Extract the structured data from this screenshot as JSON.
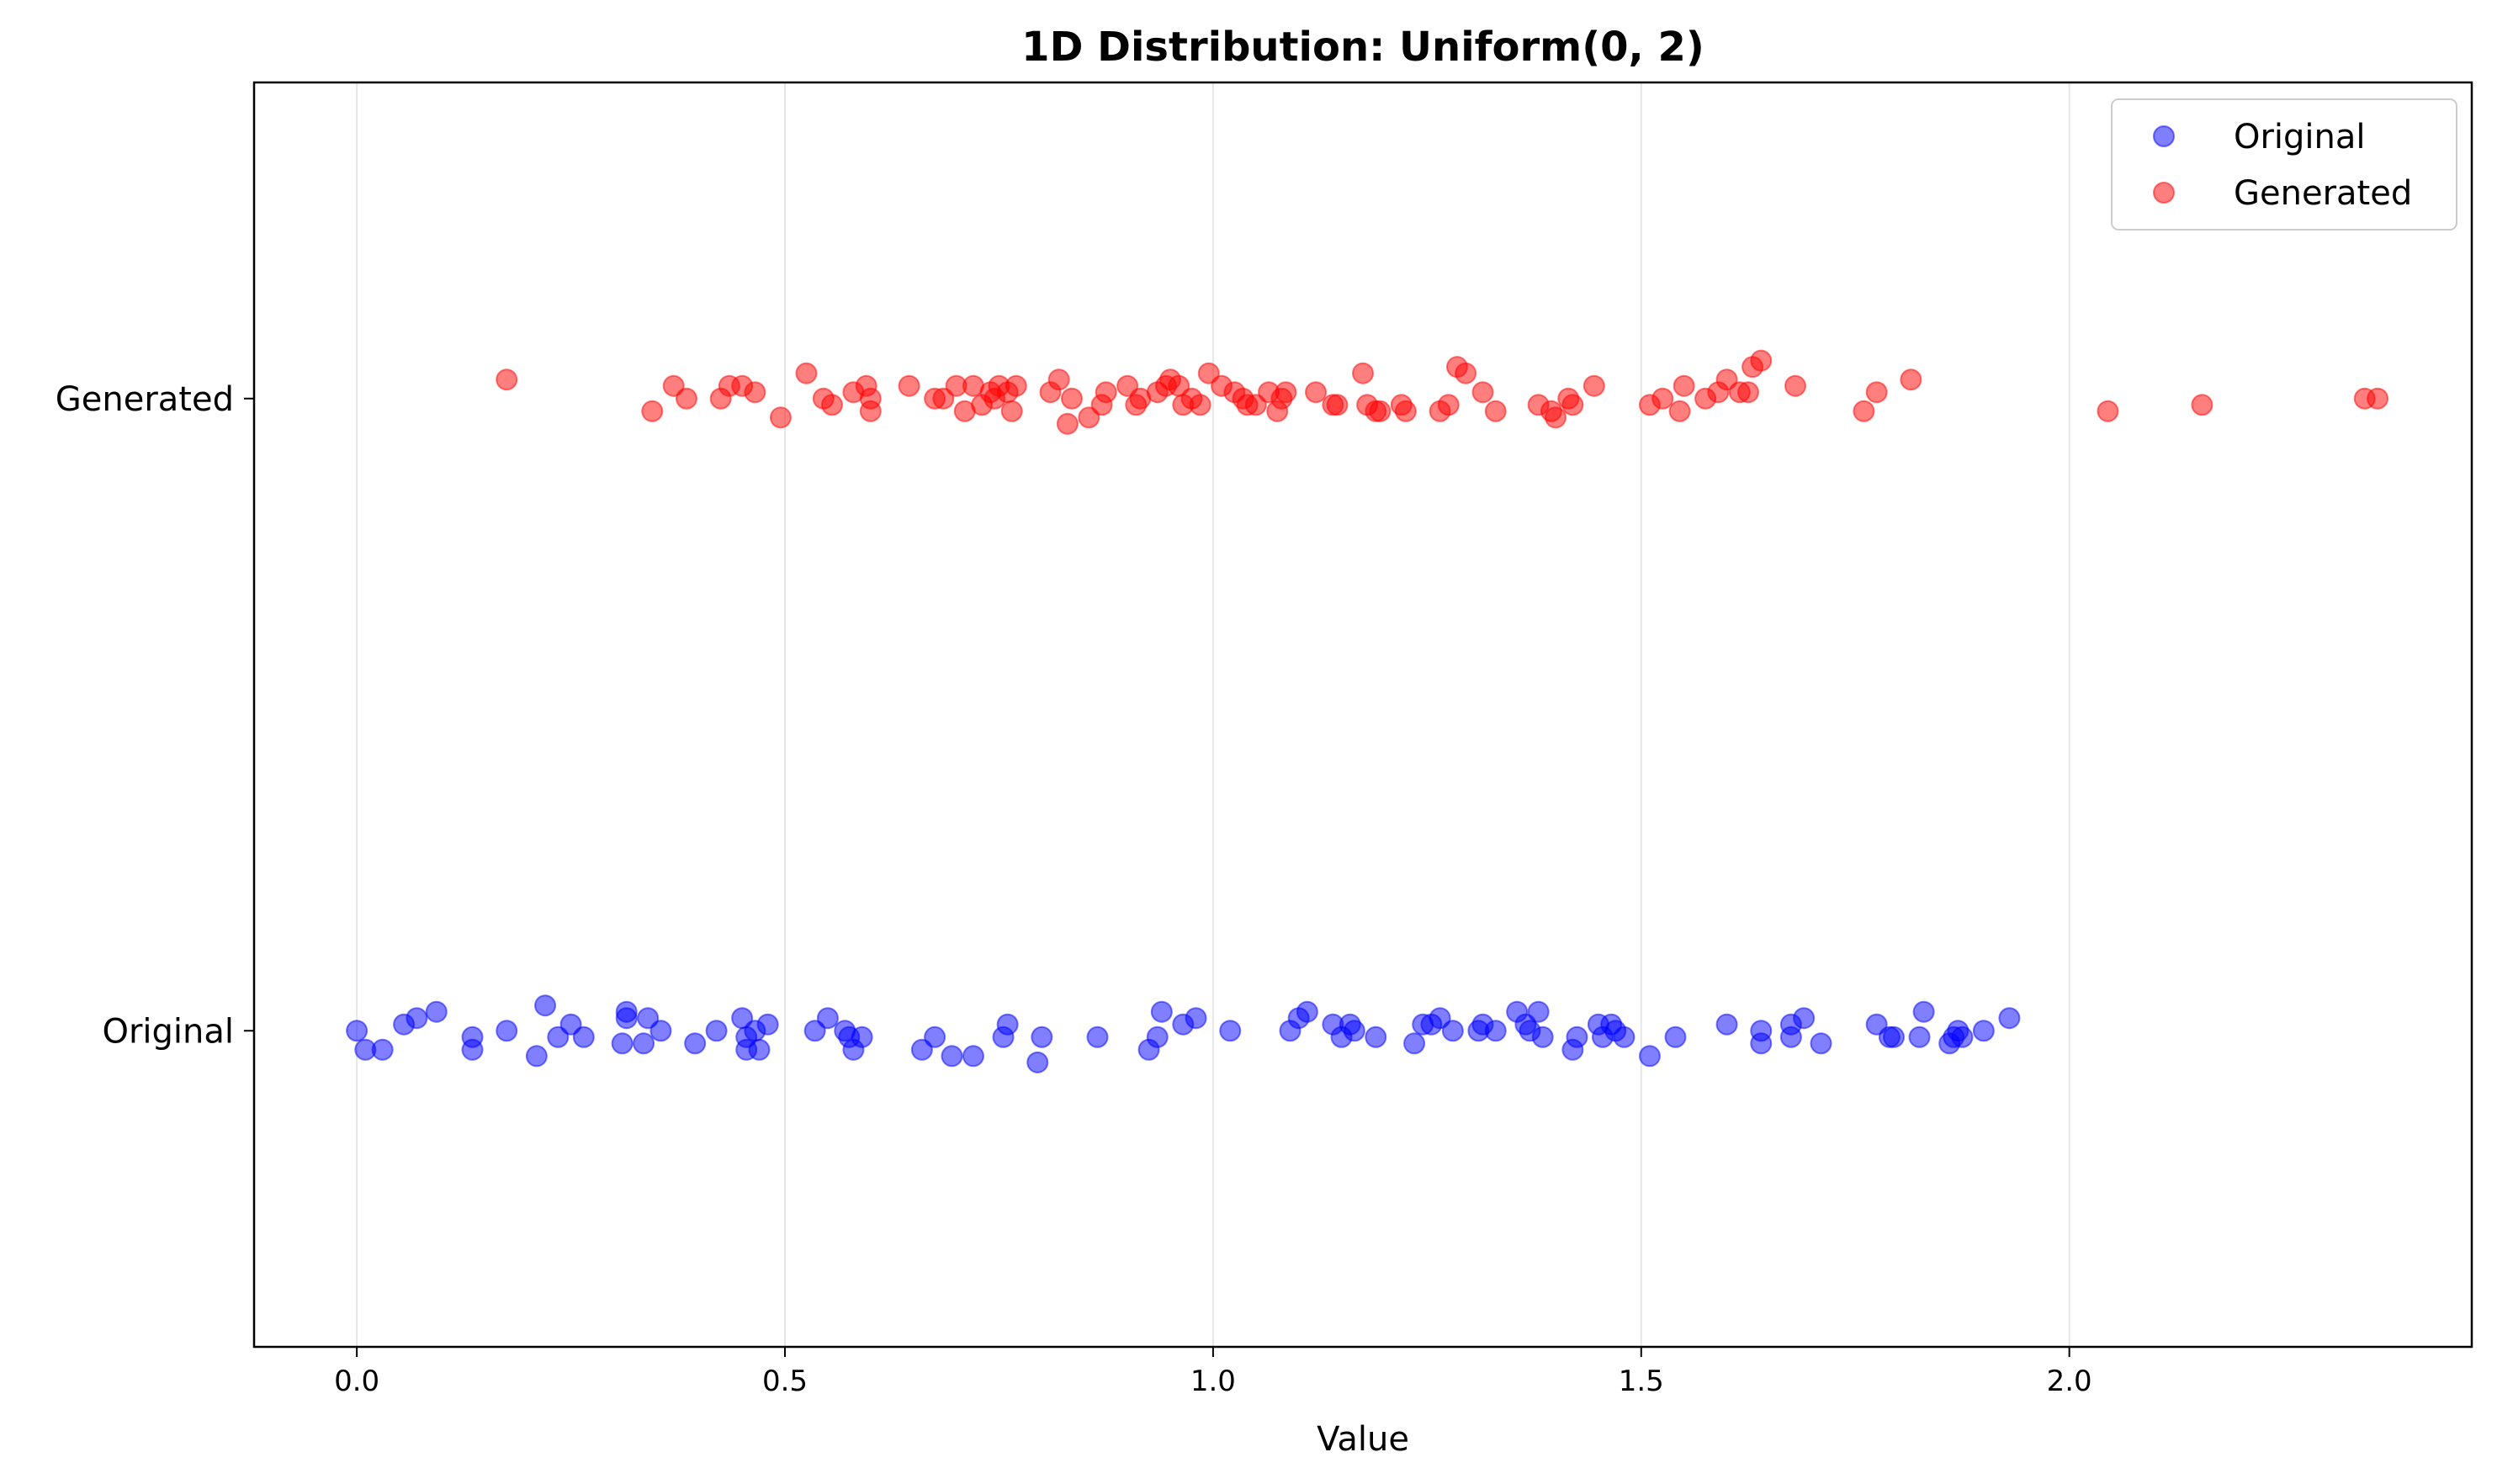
{
  "chart_data": {
    "type": "scatter",
    "title": "1D Distribution: Uniform(0, 2)",
    "xlabel": "Value",
    "ylabel": "",
    "xlim": [
      -0.12,
      2.47
    ],
    "ylim": [
      -0.5,
      1.5
    ],
    "x_ticks": [
      "0.0",
      "0.5",
      "1.0",
      "1.5",
      "2.0"
    ],
    "x_tick_values": [
      0.0,
      0.5,
      1.0,
      1.5,
      2.0
    ],
    "y_ticks": [
      "Original",
      "Generated"
    ],
    "y_tick_values": [
      0,
      1
    ],
    "grid": "vertical",
    "legend_position": "top-right",
    "series": [
      {
        "name": "Original",
        "color": "#0000ff",
        "alpha": 0.5,
        "category": "Original",
        "points": [
          {
            "x": 0.0,
            "y": 0.0
          },
          {
            "x": 0.01,
            "y": -0.03
          },
          {
            "x": 0.03,
            "y": -0.03
          },
          {
            "x": 0.055,
            "y": 0.01
          },
          {
            "x": 0.07,
            "y": 0.02
          },
          {
            "x": 0.093,
            "y": 0.03
          },
          {
            "x": 0.135,
            "y": -0.01
          },
          {
            "x": 0.135,
            "y": -0.03
          },
          {
            "x": 0.175,
            "y": 0.0
          },
          {
            "x": 0.21,
            "y": -0.04
          },
          {
            "x": 0.22,
            "y": 0.04
          },
          {
            "x": 0.235,
            "y": -0.01
          },
          {
            "x": 0.25,
            "y": 0.01
          },
          {
            "x": 0.265,
            "y": -0.01
          },
          {
            "x": 0.31,
            "y": -0.02
          },
          {
            "x": 0.315,
            "y": 0.02
          },
          {
            "x": 0.315,
            "y": 0.03
          },
          {
            "x": 0.335,
            "y": -0.02
          },
          {
            "x": 0.34,
            "y": 0.02
          },
          {
            "x": 0.355,
            "y": 0.0
          },
          {
            "x": 0.395,
            "y": -0.02
          },
          {
            "x": 0.42,
            "y": 0.0
          },
          {
            "x": 0.45,
            "y": 0.02
          },
          {
            "x": 0.455,
            "y": -0.01
          },
          {
            "x": 0.455,
            "y": -0.03
          },
          {
            "x": 0.465,
            "y": 0.0
          },
          {
            "x": 0.47,
            "y": -0.03
          },
          {
            "x": 0.48,
            "y": 0.01
          },
          {
            "x": 0.535,
            "y": 0.0
          },
          {
            "x": 0.55,
            "y": 0.02
          },
          {
            "x": 0.57,
            "y": 0.0
          },
          {
            "x": 0.575,
            "y": -0.01
          },
          {
            "x": 0.58,
            "y": -0.03
          },
          {
            "x": 0.59,
            "y": -0.01
          },
          {
            "x": 0.66,
            "y": -0.03
          },
          {
            "x": 0.675,
            "y": -0.01
          },
          {
            "x": 0.695,
            "y": -0.04
          },
          {
            "x": 0.72,
            "y": -0.04
          },
          {
            "x": 0.755,
            "y": -0.01
          },
          {
            "x": 0.76,
            "y": 0.01
          },
          {
            "x": 0.795,
            "y": -0.05
          },
          {
            "x": 0.8,
            "y": -0.01
          },
          {
            "x": 0.865,
            "y": -0.01
          },
          {
            "x": 0.925,
            "y": -0.03
          },
          {
            "x": 0.935,
            "y": -0.01
          },
          {
            "x": 0.94,
            "y": 0.03
          },
          {
            "x": 0.965,
            "y": 0.01
          },
          {
            "x": 0.98,
            "y": 0.02
          },
          {
            "x": 1.02,
            "y": 0.0
          },
          {
            "x": 1.09,
            "y": 0.0
          },
          {
            "x": 1.1,
            "y": 0.02
          },
          {
            "x": 1.11,
            "y": 0.03
          },
          {
            "x": 1.14,
            "y": 0.01
          },
          {
            "x": 1.15,
            "y": -0.01
          },
          {
            "x": 1.16,
            "y": 0.01
          },
          {
            "x": 1.165,
            "y": 0.0
          },
          {
            "x": 1.19,
            "y": -0.01
          },
          {
            "x": 1.235,
            "y": -0.02
          },
          {
            "x": 1.245,
            "y": 0.01
          },
          {
            "x": 1.255,
            "y": 0.01
          },
          {
            "x": 1.265,
            "y": 0.02
          },
          {
            "x": 1.28,
            "y": 0.0
          },
          {
            "x": 1.31,
            "y": 0.0
          },
          {
            "x": 1.315,
            "y": 0.01
          },
          {
            "x": 1.33,
            "y": 0.0
          },
          {
            "x": 1.355,
            "y": 0.03
          },
          {
            "x": 1.365,
            "y": 0.01
          },
          {
            "x": 1.37,
            "y": 0.0
          },
          {
            "x": 1.38,
            "y": 0.03
          },
          {
            "x": 1.385,
            "y": -0.01
          },
          {
            "x": 1.42,
            "y": -0.03
          },
          {
            "x": 1.425,
            "y": -0.01
          },
          {
            "x": 1.45,
            "y": 0.01
          },
          {
            "x": 1.455,
            "y": -0.01
          },
          {
            "x": 1.465,
            "y": 0.01
          },
          {
            "x": 1.47,
            "y": 0.0
          },
          {
            "x": 1.48,
            "y": -0.01
          },
          {
            "x": 1.51,
            "y": -0.04
          },
          {
            "x": 1.54,
            "y": -0.01
          },
          {
            "x": 1.6,
            "y": 0.01
          },
          {
            "x": 1.64,
            "y": -0.02
          },
          {
            "x": 1.64,
            "y": 0.0
          },
          {
            "x": 1.675,
            "y": 0.01
          },
          {
            "x": 1.675,
            "y": -0.01
          },
          {
            "x": 1.69,
            "y": 0.02
          },
          {
            "x": 1.71,
            "y": -0.02
          },
          {
            "x": 1.775,
            "y": 0.01
          },
          {
            "x": 1.79,
            "y": -0.01
          },
          {
            "x": 1.795,
            "y": -0.01
          },
          {
            "x": 1.825,
            "y": -0.01
          },
          {
            "x": 1.83,
            "y": 0.03
          },
          {
            "x": 1.86,
            "y": -0.02
          },
          {
            "x": 1.865,
            "y": -0.01
          },
          {
            "x": 1.87,
            "y": 0.0
          },
          {
            "x": 1.875,
            "y": -0.01
          },
          {
            "x": 1.9,
            "y": 0.0
          },
          {
            "x": 1.93,
            "y": 0.02
          }
        ]
      },
      {
        "name": "Generated",
        "color": "#ff0000",
        "alpha": 0.5,
        "category": "Generated",
        "points": [
          {
            "x": 0.175,
            "y": 1.03
          },
          {
            "x": 0.345,
            "y": 0.98
          },
          {
            "x": 0.37,
            "y": 1.02
          },
          {
            "x": 0.385,
            "y": 1.0
          },
          {
            "x": 0.425,
            "y": 1.0
          },
          {
            "x": 0.435,
            "y": 1.02
          },
          {
            "x": 0.45,
            "y": 1.02
          },
          {
            "x": 0.465,
            "y": 1.01
          },
          {
            "x": 0.495,
            "y": 0.97
          },
          {
            "x": 0.525,
            "y": 1.04
          },
          {
            "x": 0.545,
            "y": 1.0
          },
          {
            "x": 0.555,
            "y": 0.99
          },
          {
            "x": 0.58,
            "y": 1.01
          },
          {
            "x": 0.595,
            "y": 1.02
          },
          {
            "x": 0.6,
            "y": 0.98
          },
          {
            "x": 0.6,
            "y": 1.0
          },
          {
            "x": 0.645,
            "y": 1.02
          },
          {
            "x": 0.675,
            "y": 1.0
          },
          {
            "x": 0.685,
            "y": 1.0
          },
          {
            "x": 0.7,
            "y": 1.02
          },
          {
            "x": 0.71,
            "y": 0.98
          },
          {
            "x": 0.72,
            "y": 1.02
          },
          {
            "x": 0.73,
            "y": 0.99
          },
          {
            "x": 0.74,
            "y": 1.01
          },
          {
            "x": 0.745,
            "y": 1.0
          },
          {
            "x": 0.75,
            "y": 1.02
          },
          {
            "x": 0.76,
            "y": 1.01
          },
          {
            "x": 0.765,
            "y": 0.98
          },
          {
            "x": 0.77,
            "y": 1.02
          },
          {
            "x": 0.81,
            "y": 1.01
          },
          {
            "x": 0.82,
            "y": 1.03
          },
          {
            "x": 0.83,
            "y": 0.96
          },
          {
            "x": 0.835,
            "y": 1.0
          },
          {
            "x": 0.855,
            "y": 0.97
          },
          {
            "x": 0.87,
            "y": 0.99
          },
          {
            "x": 0.875,
            "y": 1.01
          },
          {
            "x": 0.9,
            "y": 1.02
          },
          {
            "x": 0.91,
            "y": 0.99
          },
          {
            "x": 0.915,
            "y": 1.0
          },
          {
            "x": 0.935,
            "y": 1.01
          },
          {
            "x": 0.945,
            "y": 1.02
          },
          {
            "x": 0.95,
            "y": 1.03
          },
          {
            "x": 0.96,
            "y": 1.02
          },
          {
            "x": 0.965,
            "y": 0.99
          },
          {
            "x": 0.975,
            "y": 1.0
          },
          {
            "x": 0.985,
            "y": 0.99
          },
          {
            "x": 0.995,
            "y": 1.04
          },
          {
            "x": 1.01,
            "y": 1.02
          },
          {
            "x": 1.025,
            "y": 1.01
          },
          {
            "x": 1.035,
            "y": 1.0
          },
          {
            "x": 1.04,
            "y": 0.99
          },
          {
            "x": 1.05,
            "y": 0.99
          },
          {
            "x": 1.065,
            "y": 1.01
          },
          {
            "x": 1.075,
            "y": 0.98
          },
          {
            "x": 1.08,
            "y": 1.0
          },
          {
            "x": 1.085,
            "y": 1.01
          },
          {
            "x": 1.12,
            "y": 1.01
          },
          {
            "x": 1.14,
            "y": 0.99
          },
          {
            "x": 1.145,
            "y": 0.99
          },
          {
            "x": 1.175,
            "y": 1.04
          },
          {
            "x": 1.18,
            "y": 0.99
          },
          {
            "x": 1.19,
            "y": 0.98
          },
          {
            "x": 1.195,
            "y": 0.98
          },
          {
            "x": 1.22,
            "y": 0.99
          },
          {
            "x": 1.225,
            "y": 0.98
          },
          {
            "x": 1.265,
            "y": 0.98
          },
          {
            "x": 1.275,
            "y": 0.99
          },
          {
            "x": 1.285,
            "y": 1.05
          },
          {
            "x": 1.295,
            "y": 1.04
          },
          {
            "x": 1.315,
            "y": 1.01
          },
          {
            "x": 1.33,
            "y": 0.98
          },
          {
            "x": 1.38,
            "y": 0.99
          },
          {
            "x": 1.395,
            "y": 0.98
          },
          {
            "x": 1.4,
            "y": 0.97
          },
          {
            "x": 1.415,
            "y": 1.0
          },
          {
            "x": 1.42,
            "y": 0.99
          },
          {
            "x": 1.445,
            "y": 1.02
          },
          {
            "x": 1.51,
            "y": 0.99
          },
          {
            "x": 1.525,
            "y": 1.0
          },
          {
            "x": 1.545,
            "y": 0.98
          },
          {
            "x": 1.55,
            "y": 1.02
          },
          {
            "x": 1.575,
            "y": 1.0
          },
          {
            "x": 1.59,
            "y": 1.01
          },
          {
            "x": 1.6,
            "y": 1.03
          },
          {
            "x": 1.615,
            "y": 1.01
          },
          {
            "x": 1.625,
            "y": 1.01
          },
          {
            "x": 1.63,
            "y": 1.05
          },
          {
            "x": 1.64,
            "y": 1.06
          },
          {
            "x": 1.68,
            "y": 1.02
          },
          {
            "x": 1.76,
            "y": 0.98
          },
          {
            "x": 1.775,
            "y": 1.01
          },
          {
            "x": 1.815,
            "y": 1.03
          },
          {
            "x": 2.045,
            "y": 0.98
          },
          {
            "x": 2.155,
            "y": 0.99
          },
          {
            "x": 2.345,
            "y": 1.0
          },
          {
            "x": 2.36,
            "y": 1.0
          }
        ]
      }
    ]
  }
}
